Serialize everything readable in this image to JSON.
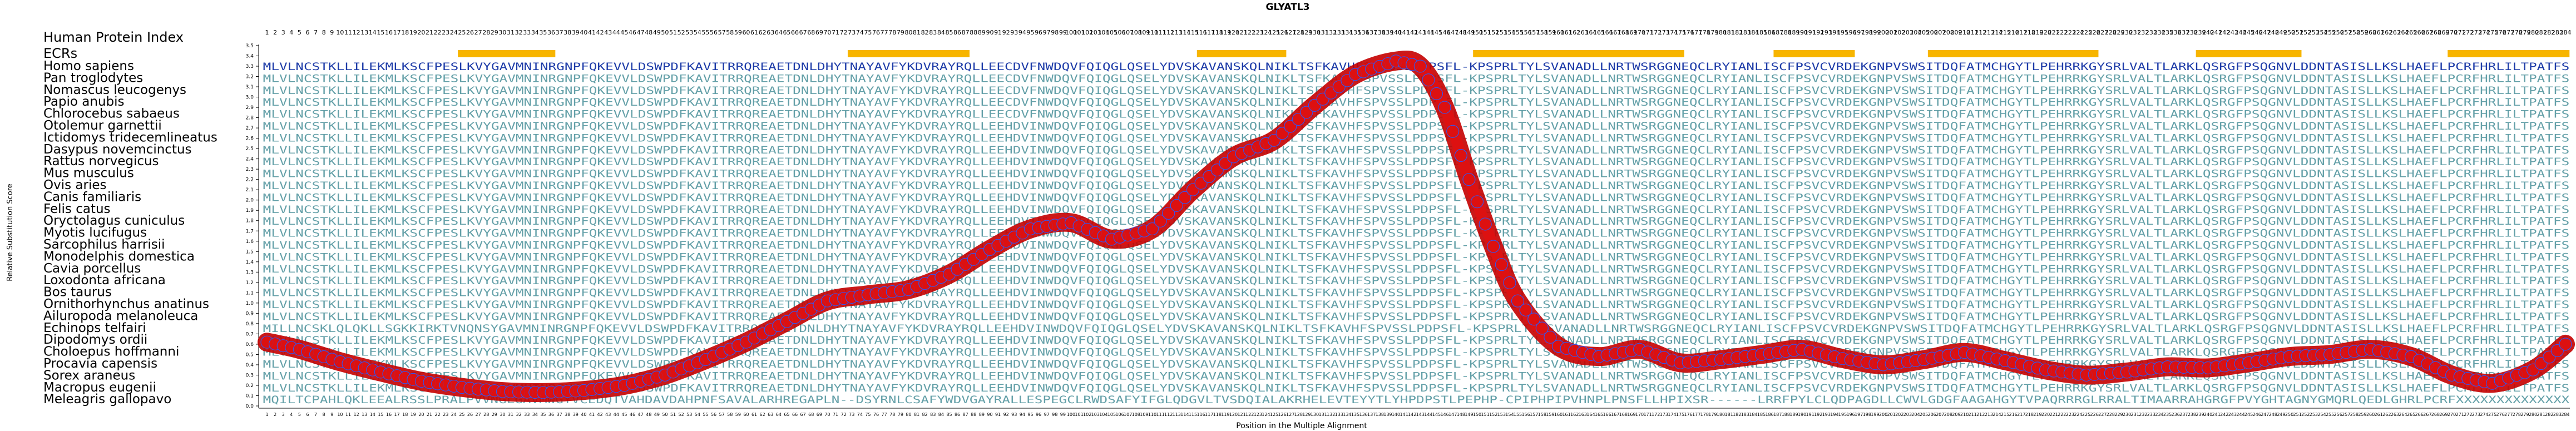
{
  "chart_data": {
    "type": "line",
    "title": "GLYATL3",
    "xlabel": "Position in the Multiple Alignment",
    "ylabel": "Relative Substitution Score",
    "ylim": [
      0,
      3.5
    ],
    "yticks": [
      0,
      0.1,
      0.2,
      0.3,
      0.4,
      0.5,
      0.6,
      0.7,
      0.8,
      0.9,
      1.0,
      1.1,
      1.2,
      1.3,
      1.4,
      1.5,
      1.6,
      1.7,
      1.8,
      1.9,
      2.0,
      2.1,
      2.2,
      2.3,
      2.4,
      2.5,
      2.6,
      2.7,
      2.8,
      2.9,
      3.0,
      3.1,
      3.2,
      3.3,
      3.4,
      3.5
    ],
    "xlim": [
      1,
      284
    ],
    "header_labels": {
      "human_index": "Human Protein Index",
      "ecrs": "ECRs"
    },
    "ecr_regions": [
      [
        25,
        36
      ],
      [
        73,
        87
      ],
      [
        116,
        126
      ],
      [
        150,
        175
      ],
      [
        187,
        196
      ],
      [
        206,
        226
      ],
      [
        239,
        251
      ],
      [
        270,
        284
      ]
    ],
    "species": [
      "Homo sapiens",
      "Pan troglodytes",
      "Nomascus leucogenys",
      "Papio anubis",
      "Chlorocebus sabaeus",
      "Otolemur garnettii",
      "Ictidomys tridecemlineatus",
      "Dasypus novemcinctus",
      "Rattus norvegicus",
      "Mus musculus",
      "Ovis aries",
      "Canis familiaris",
      "Felis catus",
      "Oryctolagus cuniculus",
      "Myotis lucifugus",
      "Sarcophilus harrisii",
      "Monodelphis domestica",
      "Cavia porcellus",
      "Loxodonta africana",
      "Bos taurus",
      "Ornithorhynchus anatinus",
      "Ailuropoda melanoleuca",
      "Echinops telfairi",
      "Dipodomys ordii",
      "Choloepus hoffmanni",
      "Procavia capensis",
      "Sorex araneus",
      "Macropus eugenii",
      "Meleagris gallopavo"
    ],
    "sequences": [
      "MLVLNCSTKLLILEKMLKSCFPESLKVYGAVMNINRGNPFQKEVVLDSWPDFKAVITRRQREAETDNLDHYTNAYAVFYKDVRAYRQLLEECDVFNWDQVFQIQGLQSELYDVSKAVANSKQLNIKLTSFKAVHFSPVSSLPDPSFL-KPSPRLTYLSVANADLLNRTWSRGGNEQCLRYIANLISCFPSVCVRDEKGNPVSWSITDQFATMCHGYTLPEHRRKGYSRLVALTLARKLQSRGFPSQGNVLDDNTASISLLKSLHAEFLPCRFHRLILTPATFS",
      "MLVLNCSTKLLILEKMLKSCFPESLKVYGAVMNINRGNPFQKEVVLDSWPDFKAVITRRQREAETDNLDHYTNAYAVFYKDVRAYRQLLEECDVFNWDQVFQIQGLQSELYDVSKAVANSKQLNIKLTSFKAVHFSPVSSLPDPSFL-KPSPRLTYLSVANADLLNRTWSRGGNEQCLRYIANLISCFPSVCVRDEKGNPVSWSITDQFATMCHGYTLPEHRRKGYSRLVALTLARKLQSRGFPSQGNVLDDNTASISLLKSLHAEFLPCRFHRLILTPATFS",
      "MLVLNCSTKLLILEKMLKSCFPESLKVYGAVMNINRGNPFQKEVVLDSWPDFKAVITRRQREAETDNLDHYTNAYAVFYKDVRAYRQLLEECDVFNWDQVFQIQGLQSELYDVSKAVANSKQLNIKLTSFKAVHFSPVSSLPDPSFL-KPSPRLTYLSVANADLLNRTWSRGGNEQCLRYIANLISCFPSVCVRDEKGNPVSWSITDQFATMCHGYTLPEHRRKGYSRLVALTLARKLQSRGFPSQGNVLDDNTASISLLKSLHAEFLPCRFHRLILTPATFS",
      "MLVLNCSTKLLILEKMLKSCFPESLKVYGAVMNINRGNPFQKEVVLDSWPDFKAVITRRQREAETDNLDHYTNAYAVFYKDVRAYRQLLEECDVFNWDQVFQIQGLQSELYDVSKAVANSKQLNIKLTSFKAVHFSPVSSLPDPSFL-KPSPRLTYLSVANADLLNRTWSRGGNEQCLRYIANLISCFPSVCVRDEKGNPVSWSITDQFATMCHGYTLPEHRRKGYSRLVALTLARKLQSRGFPSQGNVLDDNTASISLLKSLHAEFLPCRFHRLILTPATFS",
      "MLVLNCSTKLLILEKMLKSCFPESLKVYGAVMNINRGNPFQKEVVLDSWPDFKAVITRRQREAETDNLDHYTNAYAVFYKDVRAYRQLLEECDVFNWDQVFQIQGLQSELYDVSKAVANSKQLNIKLTSFKAVHFSPVSSLPDPSFL-KPSPRLTYLSVANADLLNRTWSRGGNEQCLRYIANLISCFPSVCVRDEKGNPVSWSITDQFATMCHGYTLPEHRRKGYSRLVALTLARKLQSRGFPSQGNVLDDNTASISLLKSLHAEFLPCRFHRLILTPATFS",
      "MLVLNCSTKLLILEKMLKSCFPESLKVYGAVMNINRGNPFQKEVVLDSWPDFKAVITRRQREAETDNLDHYTNAYAVFYKDVRAYRQLLEEHDVINWDQVFQIQGLQSELYDVSKAVANSKQLNIKLTSFKAVHFSPVSSLPDPSFL-KPSPRLTYLSVANADLLNRTWSRGGNEQCLRYIANLISCFPSVCVRDEKGNPVSWSITDQFATMCHGYTLPEHRRKGYSRLVALTLARKLQSRGFPSQGNVLDDNTASISLLKSLHAEFLPCRFHRLILTPATFS",
      "MLVLNCSTKLLILEKMLKSCFPESLKVYGAVMNINRGNPFQKEVVLDSWPDFKAVITRRQREAETDNLDHYTNAYAVFYKDVRAYRQLLEEHDVINWDQVFQIQGLQSELYDVSKAVANSKQLNIKLTSFKAVHFSPVSSLPDPSFL-KPSPRLTYLSVANADLLNRTWSRGGNEQCLRYIANLISCFPSVCVRDEKGNPVSWSITDQFATMCHGYTLPEHRRKGYSRLVALTLARKLQSRGFPSQGNVLDDNTASISLLKSLHAEFLPCRFHRLILTPATFS",
      "MLVLNCSTKLLILEKMLKSCFPESLKVYGAVMNINRGNPFQKEVVLDSWPDFKAVITRRQREAETDNLDHYTNAYAVFYKDVRAYRQLLEEHDVINWDQVFQIQGLQSELYDVSKAVANSKQLNIKLTSFKAVHFSPVSSLPDPSFL-KPSPRLTYLSVANADLLNRTWSRGGNEQCLRYIANLISCFPSVCVRDEKGNPVSWSITDQFATMCHGYTLPEHRRKGYSRLVALTLARKLQSRGFPSQGNVLDDNTASISLLKSLHAEFLPCRFHRLILTPATFS",
      "MLVLNCSTKLLILEKMLKSCFPESLKVYGAVMNINRGNPFQKEVVLDSWPDFKAVITRRQREAETDNLDHYTNAYAVFYKDVRAYRQLLEEHDVINWDQVFQIQGLQSELYDVSKAVANSKQLNIKLTSFKAVHFSPVSSLPDPSFL-KPSPRLTYLSVANADLLNRTWSRGGNEQCLRYIANLISCFPSVCVRDEKGNPVSWSITDQFATMCHGYTLPEHRRKGYSRLVALTLARKLQSRGFPSQGNVLDDNTASISLLKSLHAEFLPCRFHRLILTPATFS",
      "MLVLNCSTKLLILEKMLKSCFPESLKVYGAVMNINRGNPFQKEVVLDSWPDFKAVITRRQREAETDNLDHYTNAYAVFYKDVRAYRQLLEEHDVINWDQVFQIQGLQSELYDVSKAVANSKQLNIKLTSFKAVHFSPVSSLPDPSFL-KPSPRLTYLSVANADLLNRTWSRGGNEQCLRYIANLISCFPSVCVRDEKGNPVSWSITDQFATMCHGYTLPEHRRKGYSRLVALTLARKLQSRGFPSQGNVLDDNTASISLLKSLHAEFLPCRFHRLILTPATFS",
      "MLVLNCSTKLLILEKMLKSCFPESLKVYGAVMNINRGNPFQKEVVLDSWPDFKAVITRRQREAETDNLDHYTNAYAVFYKDVRAYRQLLEEHDVINWDQVFQIQGLQSELYDVSKAVANSKQLNIKLTSFKAVHFSPVSSLPDPSFL-KPSPRLTYLSVANADLLNRTWSRGGNEQCLRYIANLISCFPSVCVRDEKGNPVSWSITDQFATMCHGYTLPEHRRKGYSRLVALTLARKLQSRGFPSQGNVLDDNTASISLLKSLHAEFLPCRFHRLILTPATFS",
      "MLVLNCSTKLLILEKMLKSCFPESLKVYGAVMNINRGNPFQKEVVLDSWPDFKAVITRRQREAETDNLDHYTNAYAVFYKDVRAYRQLLEEHDVINWDQVFQIQGLQSELYDVSKAVANSKQLNIKLTSFKAVHFSPVSSLPDPSFL-KPSPRLTYLSVANADLLNRTWSRGGNEQCLRYIANLISCFPSVCVRDEKGNPVSWSITDQFATMCHGYTLPEHRRKGYSRLVALTLARKLQSRGFPSQGNVLDDNTASISLLKSLHAEFLPCRFHRLILTPATFS",
      "MLVLNCSTKLLILEKMLKSCFPESLKVYGAVMNINRGNPFQKEVVLDSWPDFKAVITRRQREAETDNLDHYTNAYAVFYKDVRAYRQLLEEHDVINWDQVFQIQGLQSELYDVSKAVANSKQLNIKLTSFKAVHFSPVSSLPDPSFL-KPSPRLTYLSVANADLLNRTWSRGGNEQCLRYIANLISCFPSVCVRDEKGNPVSWSITDQFATMCHGYTLPEHRRKGYSRLVALTLARKLQSRGFPSQGNVLDDNTASISLLKSLHAEFLPCRFHRLILTPATFS",
      "MLVLNCSTKLLILEKMLKSCFPESLKVYGAVMNINRGNPFQKEVVLDSWPDFKAVITRRQREAETDNLDHYTNAYAVFYKDVRAYRQLLEEHDVINWDQVFQIQGLQSELYDVSKAVANSKQLNIKLTSFKAVHFSPVSSLPDPSFL-KPSPRLTYLSVANADLLNRTWSRGGNEQCLRYIANLISCFPSVCVRDEKGNPVSWSITDQFATMCHGYTLPEHRRKGYSRLVALTLARKLQSRGFPSQGNVLDDNTASISLLKSLHAEFLPCRFHRLILTPATFS",
      "MLVLNCSTKLLILEKMLKSCFPESLKVYGAVMNINRGNPFQKEVVLDSWPDFKAVITRRQREAETDNLDHYTNAYAVFYKDVRAYRQLLEEHDVINWDQVFQIQGLQSELYDVSKAVANSKQLNIKLTSFKAVHFSPVSSLPDPSFL-KPSPRLTYLSVANADLLNRTWSRGGNEQCLRYIANLISCFPSVCVRDEKGNPVSWSITDQFATMCHGYTLPEHRRKGYSRLVALTLARKLQSRGFPSQGNVLDDNTASISLLKSLHAEFLPCRFHRLILTPATFS",
      "MLVLNCSTKLLILEKMLKSCFPESLKVYGAVMNINRGNPFQKEVVLDSWPDFKAVITRRQREAETDNLDHYTNAYAVFYKDVRAYRQLLEEHDVINWDQVFQIQGLQSELYDVSKAVANSKQLNIKLTSFKAVHFSPVSSLPDPSFL-KPSPRLTYLSVANADLLNRTWSRGGNEQCLRYIANLISCFPSVCVRDEKGNPVSWSITDQFATMCHGYTLPEHRRKGYSRLVALTLARKLQSRGFPSQGNVLDDNTASISLLKSLHAEFLPCRFHRLILTPATFS",
      "MLVLNCSTKLLILEKMLKSCFPESLKVYGAVMNINRGNPFQKEVVLDSWPDFKAVITRRQREAETDNLDHYTNAYAVFYKDVRAYRQLLEEHDVINWDQVFQIQGLQSELYDVSKAVANSKQLNIKLTSFKAVHFSPVSSLPDPSFL-KPSPRLTYLSVANADLLNRTWSRGGNEQCLRYIANLISCFPSVCVRDEKGNPVSWSITDQFATMCHGYTLPEHRRKGYSRLVALTLARKLQSRGFPSQGNVLDDNTASISLLKSLHAEFLPCRFHRLILTPATFS",
      "MLVLNCSTKLLILEKMLKSCFPESLKVYGAVMNINRGNPFQKEVVLDSWPDFKAVITRRQREAETDNLDHYTNAYAVFYKDVRAYRQLLEEHDVINWDQVFQIQGLQSELYDVSKAVANSKQLNIKLTSFKAVHFSPVSSLPDPSFL-KPSPRLTYLSVANADLLNRTWSRGGNEQCLRYIANLISCFPSVCVRDEKGNPVSWSITDQFATMCHGYTLPEHRRKGYSRLVALTLARKLQSRGFPSQGNVLDDNTASISLLKSLHAEFLPCRFHRLILTPATFS",
      "MLVLNCSTKLLILEKMLKSCFPESLKVYGAVMNINRGNPFQKEVVLDSWPDFKAVITRRQREAETDNLDHYTNAYAVFYKDVRAYRQLLEEHDVINWDQVFQIQGLQSELYDVSKAVANSKQLNIKLTSFKAVHFSPVSSLPDPSFL-KPSPRLTYLSVANADLLNRTWSRGGNEQCLRYIANLISCFPSVCVRDEKGNPVSWSITDQFATMCHGYTLPEHRRKGYSRLVALTLARKLQSRGFPSQGNVLDDNTASISLLKSLHAEFLPCRFHRLILTPATFS",
      "MLVLNCSTKLLILEKMLKSCFPESLKVYGAVMNINRGNPFQKEVVLDSWPDFKAVITRRQREAETDNLDHYTNAYAVFYKDVRAYRQLLEEHDVINWDQVFQIQGLQSELYDVSKAVANSKQLNIKLTSFKAVHFSPVSSLPDPSFL-KPSPRLTYLSVANADLLNRTWSRGGNEQCLRYIANLISCFPSVCVRDEKGNPVSWSITDQFATMCHGYTLPEHRRKGYSRLVALTLARKLQSRGFPSQGNVLDDNTASISLLKSLHAEFLPCRFHRLILTPATFS",
      "MLVLNCSTKLLILEKMLKSCFPESLKVYGAVMNINRGNPFQKEVVLDSWPDFKAVITRRQREAETDNLDHYTNAYAVFYKDVRAYRQLLEEHDVINWDQVFQIQGLQSELYDVSKAVANSKQLNIKLTSFKAVHFSPVSSLPDPSFL-KPSPRLTYLSVANADLLNRTWSRGGNEQCLRYIANLISCFPSVCVRDEKGNPVSWSITDQFATMCHGYTLPEHRRKGYSRLVALTLARKLQSRGFPSQGNVLDDNTASISLLKSLHAEFLPCRFHRLILTPATFS",
      "MLVLNCSTKLLILEKMLKSCFPESLKVYGAVMNINRGNPFQKEVVLDSWPDFKAVITRRQREAETDNLDHYTNAYAVFYKDVRAYRQLLEEHDVINWDQVFQIQGLQSELYDVSKAVANSKQLNIKLTSFKAVHFSPVSSLPDPSFL-KPSPRLTYLSVANADLLNRTWSRGGNEQCLRYIANLISCFPSVCVRDEKGNPVSWSITDQFATMCHGYTLPEHRRKGYSRLVALTLARKLQSRGFPSQGNVLDDNTASISLLKSLHAEFLPCRFHRLILTPATFS",
      "MILLNCSKLQLQKLLSGKKIRKTVNQNSYGAVMNINRGNPFQKEVVLDSWPDFKAVITRRQREAETDNLDHYTNAYAVFYKDVRAYRQLLEEHDVINWDQVFQIQGLQSELYDVSKAVANSKQLNIKLTSFKAVHFSPVSSLPDPSFL-KPSPRLTYLSVANADLLNRTWSRGGNEQCLRYIANLISCFPSVCVRDEKGNPVSWSITDQFATMCHGYTLPEHRRKGYSRLVALTLARKLQSRGFPSQGNVLDDNTASISLLKSLHAEFLPCRFHRLILTPATFS",
      "MLVLNCSTKLLILEKMLKSCFPESLKVYGAVMNINRGNPFQKEVVLDSWPDFKAVITRRQREAETDNLDHYTNAYAVFYKDVRAYRQLLEEHDVINWDQVFQIQGLQSELYDVSKAVANSKQLNIKLTSFKAVHFSPVSSLPDPSFL-KPSPRLTYLSVANADLLNRTWSRGGNEQCLRYIANLISCFPSVCVRDEKGNPVSWSITDQFATMCHGYTLPEHRRKGYSRLVALTLARKLQSRGFPSQGNVLDDNTASISLLKSLHAEFLPCRFHRLILTPATFS",
      "MLVLNCSTKLLILEKMLKSCFPESLKVYGAVMNINRGNPFQKEVVLDSWPDFKAVITRRQREAETDNLDHYTNAYAVFYKDVRAYRQLLEEHDVINWDQVFQIQGLQSELYDVSKAVANSKQLNIKLTSFKAVHFSPVSSLPDPSFL-KPSPRLTYLSVANADLLNRTWSRGGNEQCLRYIANLISCFPSVCVRDEKGNPVSWSITDQFATMCHGYTLPEHRRKGYSRLVALTLARKLQSRGFPSQGNVLDDNTASISLLKSLHAEFLPCRFHRLILTPATFS",
      "MLVLNCSTKLLILEKMLKSCFPESLKVYGAVMNINRGNPFQKEVVLDSWPDFKAVITRRQREAETDNLDHYTNAYAVFYKDVRAYRQLLEEHDVINWDQVFQIQGLQSELYDVSKAVANSKQLNIKLTSFKAVHFSPVSSLPDPSFL-KPSPRLTYLSVANADLLNRTWSRGGNEQCLRYIANLISCFPSVCVRDEKGNPVSWSITDQFATMCHGYTLPEHRRKGYSRLVALTLARKLQSRGFPSQGNVLDDNTASISLLKSLHAEFLPCRFHRLILTPATFS",
      "MLVLNCSTKLLILEKMLKSCFPESLKVYGAVMNINRGNPFQKEVVLDSWPDFKAVITRRQREAETDNLDHYTNAYAVFYKDVRAYRQLLEEHDVINWDQVFQIQGLQSELYDVSKAVANSKQLNIKLTSFKAVHFSPVSSLPDPSFL-KPSPRLTYLSVANADLLNRTWSRGGNEQCLRYIANLISCFPSVCVRDEKGNPVSWSITDQFATMCHGYTLPEHRRKGYSRLVALTLARKLQSRGFPSQGNVLDDNTASISLLKSLHAEFLPCRFHRLILTPATFS",
      "MLVLNCSTKLLILEKMLKSCFPESLKVYGAVMNINRGNPFQKEVVLDSWPDFKAVITRRQREAETDNLDHYTNAYAVFYKDVRAYRQLLEEHDVINWDQVFQIQGLQSELYDVSKAVANSKQLNIKLTSFKAVHFSPVSSLPDPSFL-KPSPRLTYLSVANADLLNRTWSRGGNEQCLRYIANLISCFPSVCVRDEKGNPVSWSITDQFATMCHGYTLPEHRRKGYSRLVALTLARKLQSRGFPSQGNVLDDNTASISLLKSLHAEFLPCRFHRLILTPATFS",
      "MQILTCPAHLQKLEEALRSSLPRALPVVNGLGAVMWGYVCEDQTVAHDAVDAHPNFSAVALARHREGAPLN--DSYRNLCSAFYWDVGAYRALLESPEGCLRWDSAFYIFGLQDGVLTVSDQIALAKRHELEVTEYYTLYHPDPSTLPEPHP-CPIPHPIPVHNPLPNSFLLHPIXSR------LRRFPYLCLQDPAGDLLCWVLGDGFAAGAHGYTVPAQRRRGLRRALTIMAARRAHGRGFPVYGHTAGNYGMQRLQEDLGHRLPCRFXXXXXXXXXXXXXX"
    ],
    "series": [
      {
        "x": [
          1,
          5,
          10,
          15,
          20,
          25,
          30,
          35,
          40,
          45,
          50,
          55,
          60,
          65,
          70,
          75,
          80,
          85,
          90,
          95,
          100,
          105,
          110,
          115,
          120,
          125,
          130,
          135,
          140,
          143,
          146,
          149,
          152,
          155,
          160,
          165,
          170,
          175,
          180,
          185,
          190,
          195,
          200,
          205,
          210,
          215,
          220,
          225,
          230,
          235,
          240,
          245,
          250,
          255,
          260,
          265,
          270,
          275,
          280,
          284
        ],
        "y": [
          0.62,
          0.55,
          0.43,
          0.33,
          0.24,
          0.18,
          0.14,
          0.13,
          0.15,
          0.2,
          0.3,
          0.45,
          0.62,
          0.82,
          1.02,
          1.08,
          1.13,
          1.28,
          1.52,
          1.72,
          1.78,
          1.62,
          1.72,
          2.1,
          2.42,
          2.58,
          2.92,
          3.22,
          3.35,
          3.3,
          2.9,
          2.2,
          1.55,
          1.02,
          0.58,
          0.48,
          0.55,
          0.42,
          0.45,
          0.5,
          0.55,
          0.46,
          0.4,
          0.45,
          0.52,
          0.44,
          0.35,
          0.3,
          0.33,
          0.38,
          0.37,
          0.42,
          0.48,
          0.5,
          0.55,
          0.48,
          0.3,
          0.22,
          0.35,
          0.6
        ]
      }
    ],
    "colors": {
      "line": "#dd1111",
      "marker_edge": "#3355ee",
      "ecr": "#f7b500",
      "residue": "#1e3ca8",
      "gap": "#4cb2b0",
      "variant": "#64a0a8"
    }
  }
}
